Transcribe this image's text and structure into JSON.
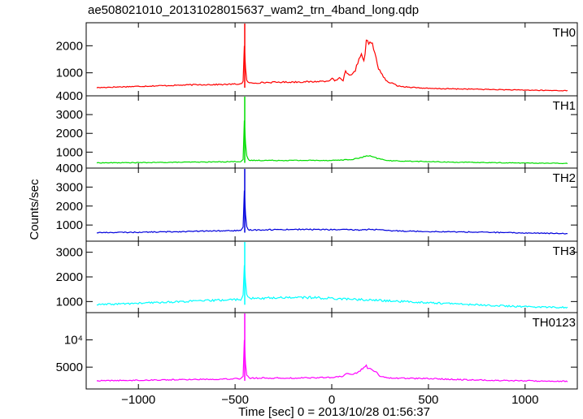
{
  "chart_data": {
    "type": "line",
    "title": "ae508021010_20131028015637_wam2_trn_4band_long.qdp",
    "xlabel": "Time [sec] 0 = 2013/10/28 01:56:37",
    "ylabel": "Counts/sec",
    "xlim": [
      -1270,
      1270
    ],
    "x_ticks": [
      {
        "value": -1000,
        "label": "−1000"
      },
      {
        "value": -500,
        "label": "−500"
      },
      {
        "value": 0,
        "label": "0"
      },
      {
        "value": 500,
        "label": "500"
      },
      {
        "value": 1000,
        "label": "1000"
      }
    ],
    "panels": [
      {
        "name": "TH0",
        "color": "#ff0000",
        "scale": "linear",
        "ylim": [
          150,
          2850
        ],
        "y_ticks": [
          {
            "value": 1000,
            "label": "1000"
          },
          {
            "value": 2000,
            "label": "2000"
          }
        ],
        "points": [
          [
            -1220,
            450
          ],
          [
            -1100,
            480
          ],
          [
            -900,
            520
          ],
          [
            -700,
            560
          ],
          [
            -550,
            570
          ],
          [
            -470,
            590
          ],
          [
            -455,
            700
          ],
          [
            -450,
            2850
          ],
          [
            -445,
            800
          ],
          [
            -430,
            620
          ],
          [
            -300,
            650
          ],
          [
            -200,
            660
          ],
          [
            -100,
            670
          ],
          [
            -20,
            700
          ],
          [
            0,
            780
          ],
          [
            20,
            700
          ],
          [
            40,
            800
          ],
          [
            60,
            720
          ],
          [
            70,
            1050
          ],
          [
            80,
            950
          ],
          [
            100,
            880
          ],
          [
            120,
            1050
          ],
          [
            140,
            1500
          ],
          [
            150,
            1700
          ],
          [
            160,
            1550
          ],
          [
            170,
            1400
          ],
          [
            180,
            2400
          ],
          [
            190,
            1950
          ],
          [
            200,
            2200
          ],
          [
            210,
            2050
          ],
          [
            220,
            1800
          ],
          [
            240,
            1200
          ],
          [
            280,
            700
          ],
          [
            350,
            500
          ],
          [
            500,
            420
          ],
          [
            700,
            400
          ],
          [
            1000,
            360
          ],
          [
            1220,
            340
          ]
        ]
      },
      {
        "name": "TH1",
        "color": "#00dd00",
        "scale": "linear",
        "ylim": [
          150,
          4000
        ],
        "y_ticks": [
          {
            "value": 1000,
            "label": "1000"
          },
          {
            "value": 2000,
            "label": "2000"
          },
          {
            "value": 3000,
            "label": "3000"
          },
          {
            "value": 4000,
            "label": "4000"
          }
        ],
        "points": [
          [
            -1220,
            430
          ],
          [
            -1000,
            440
          ],
          [
            -800,
            460
          ],
          [
            -600,
            480
          ],
          [
            -470,
            500
          ],
          [
            -455,
            650
          ],
          [
            -450,
            4000
          ],
          [
            -445,
            900
          ],
          [
            -430,
            560
          ],
          [
            -200,
            560
          ],
          [
            0,
            560
          ],
          [
            100,
            600
          ],
          [
            150,
            700
          ],
          [
            180,
            800
          ],
          [
            200,
            780
          ],
          [
            240,
            650
          ],
          [
            300,
            540
          ],
          [
            600,
            470
          ],
          [
            900,
            430
          ],
          [
            1220,
            400
          ]
        ]
      },
      {
        "name": "TH2",
        "color": "#0000dd",
        "scale": "linear",
        "ylim": [
          150,
          4000
        ],
        "y_ticks": [
          {
            "value": 1000,
            "label": "1000"
          },
          {
            "value": 2000,
            "label": "2000"
          },
          {
            "value": 3000,
            "label": "3000"
          },
          {
            "value": 4000,
            "label": "4000"
          }
        ],
        "points": [
          [
            -1220,
            600
          ],
          [
            -1000,
            620
          ],
          [
            -800,
            650
          ],
          [
            -600,
            690
          ],
          [
            -470,
            710
          ],
          [
            -455,
            900
          ],
          [
            -450,
            4000
          ],
          [
            -445,
            1000
          ],
          [
            -430,
            740
          ],
          [
            -200,
            770
          ],
          [
            0,
            760
          ],
          [
            150,
            740
          ],
          [
            200,
            780
          ],
          [
            300,
            700
          ],
          [
            500,
            660
          ],
          [
            800,
            620
          ],
          [
            1000,
            580
          ],
          [
            1220,
            550
          ]
        ]
      },
      {
        "name": "TH3",
        "color": "#00ffff",
        "scale": "linear",
        "ylim": [
          550,
          3450
        ],
        "y_ticks": [
          {
            "value": 1000,
            "label": "1000"
          },
          {
            "value": 2000,
            "label": "2000"
          },
          {
            "value": 3000,
            "label": "3000"
          }
        ],
        "points": [
          [
            -1220,
            870
          ],
          [
            -1000,
            930
          ],
          [
            -800,
            990
          ],
          [
            -600,
            1050
          ],
          [
            -470,
            1090
          ],
          [
            -455,
            1300
          ],
          [
            -450,
            3450
          ],
          [
            -445,
            1400
          ],
          [
            -430,
            1120
          ],
          [
            -300,
            1150
          ],
          [
            -200,
            1170
          ],
          [
            -100,
            1160
          ],
          [
            0,
            1130
          ],
          [
            200,
            1060
          ],
          [
            400,
            990
          ],
          [
            600,
            920
          ],
          [
            800,
            850
          ],
          [
            1000,
            790
          ],
          [
            1220,
            760
          ]
        ]
      },
      {
        "name": "TH0123",
        "color": "#ff00ff",
        "scale": "linear",
        "ylim": [
          1000,
          15000
        ],
        "y_ticks": [
          {
            "value": 5000,
            "label": "5000"
          },
          {
            "value": 10000,
            "label": "10⁴"
          }
        ],
        "points": [
          [
            -1220,
            2500
          ],
          [
            -1000,
            2600
          ],
          [
            -800,
            2700
          ],
          [
            -600,
            2800
          ],
          [
            -470,
            2900
          ],
          [
            -455,
            3500
          ],
          [
            -450,
            15000
          ],
          [
            -445,
            4000
          ],
          [
            -430,
            3000
          ],
          [
            -200,
            3000
          ],
          [
            0,
            3100
          ],
          [
            60,
            3300
          ],
          [
            80,
            4000
          ],
          [
            100,
            3500
          ],
          [
            140,
            4200
          ],
          [
            160,
            4800
          ],
          [
            180,
            5200
          ],
          [
            190,
            4600
          ],
          [
            200,
            4900
          ],
          [
            220,
            4300
          ],
          [
            250,
            3400
          ],
          [
            300,
            3000
          ],
          [
            500,
            2900
          ],
          [
            800,
            2600
          ],
          [
            1000,
            2500
          ],
          [
            1220,
            2400
          ]
        ]
      }
    ],
    "grid": false,
    "legend": "none"
  }
}
